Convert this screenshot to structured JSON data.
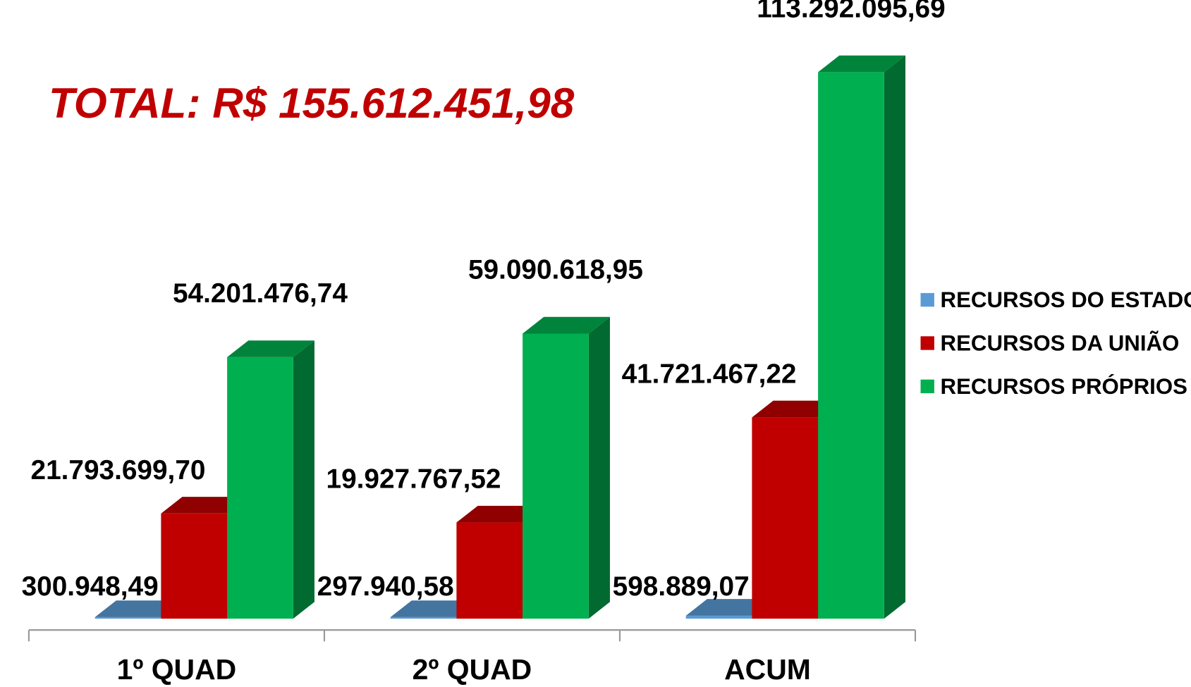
{
  "chart_data": {
    "type": "bar3d",
    "annotation": "TOTAL: R$ 155.612.451,98",
    "categories": [
      "1º QUAD",
      "2º QUAD",
      "ACUM"
    ],
    "series": [
      {
        "name": "RECURSOS DO ESTADO",
        "color": "#5b9bd5",
        "values": [
          300948.49,
          297940.58,
          598889.07
        ],
        "value_labels": [
          "300.948,49",
          "297.940,58",
          "598.889,07"
        ]
      },
      {
        "name": "RECURSOS DA UNIÃO",
        "color": "#c00000",
        "values": [
          21793699.7,
          19927767.52,
          41721467.22
        ],
        "value_labels": [
          "21.793.699,70",
          "19.927.767,52",
          "41.721.467,22"
        ]
      },
      {
        "name": "RECURSOS PRÓPRIOS",
        "color": "#00b050",
        "values": [
          54201476.74,
          59090618.95,
          113292095.69
        ],
        "value_labels": [
          "54.201.476,74",
          "59.090.618,95",
          "113.292.095,69"
        ]
      }
    ],
    "legend": "right"
  }
}
